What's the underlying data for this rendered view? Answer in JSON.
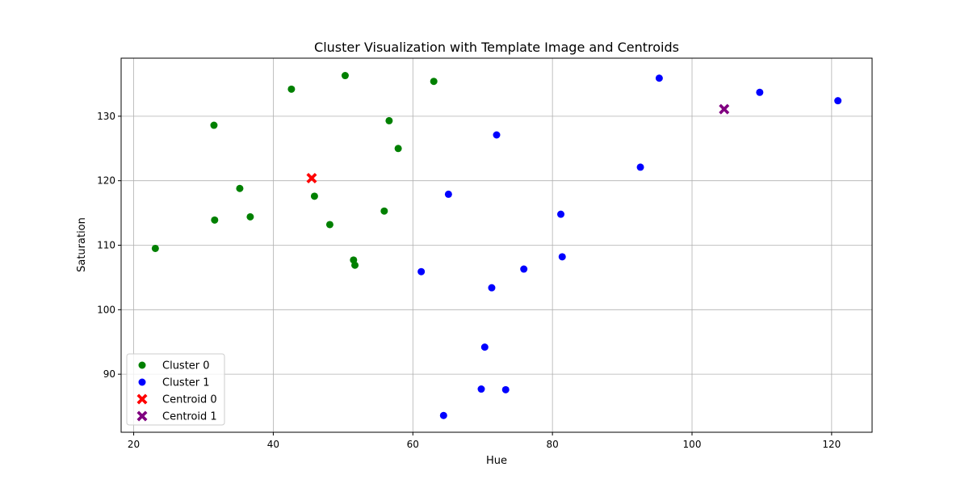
{
  "chart_data": {
    "type": "scatter",
    "title": "Cluster Visualization with Template Image and Centroids",
    "xlabel": "Hue",
    "ylabel": "Saturation",
    "xlim": [
      18.2,
      125.8
    ],
    "ylim": [
      81.0,
      139.0
    ],
    "xticks": [
      20,
      40,
      60,
      80,
      100,
      120
    ],
    "yticks": [
      90,
      100,
      110,
      120,
      130
    ],
    "grid": true,
    "legend_position": "lower-left",
    "series": [
      {
        "name": "Cluster 0",
        "marker": "circle",
        "color": "#008000",
        "points": [
          [
            23.1,
            109.5
          ],
          [
            31.5,
            128.6
          ],
          [
            31.6,
            113.9
          ],
          [
            35.2,
            118.8
          ],
          [
            36.7,
            114.4
          ],
          [
            42.6,
            134.2
          ],
          [
            45.9,
            117.6
          ],
          [
            48.1,
            113.2
          ],
          [
            50.3,
            136.3
          ],
          [
            51.5,
            107.7
          ],
          [
            51.7,
            106.9
          ],
          [
            55.9,
            115.3
          ],
          [
            56.6,
            129.3
          ],
          [
            57.9,
            125.0
          ],
          [
            63.0,
            135.4
          ]
        ]
      },
      {
        "name": "Cluster 1",
        "marker": "circle",
        "color": "#0000ff",
        "points": [
          [
            61.2,
            105.9
          ],
          [
            64.4,
            83.6
          ],
          [
            65.1,
            117.9
          ],
          [
            69.8,
            87.7
          ],
          [
            70.3,
            94.2
          ],
          [
            71.3,
            103.4
          ],
          [
            72.0,
            127.1
          ],
          [
            73.3,
            87.6
          ],
          [
            75.9,
            106.3
          ],
          [
            81.2,
            114.8
          ],
          [
            81.4,
            108.2
          ],
          [
            92.6,
            122.1
          ],
          [
            95.3,
            135.9
          ],
          [
            109.7,
            133.7
          ],
          [
            120.9,
            132.4
          ]
        ]
      },
      {
        "name": "Centroid 0",
        "marker": "x",
        "color": "#ff0000",
        "points": [
          [
            45.5,
            120.4
          ]
        ]
      },
      {
        "name": "Centroid 1",
        "marker": "x",
        "color": "#800080",
        "points": [
          [
            104.6,
            131.1
          ]
        ]
      }
    ]
  }
}
